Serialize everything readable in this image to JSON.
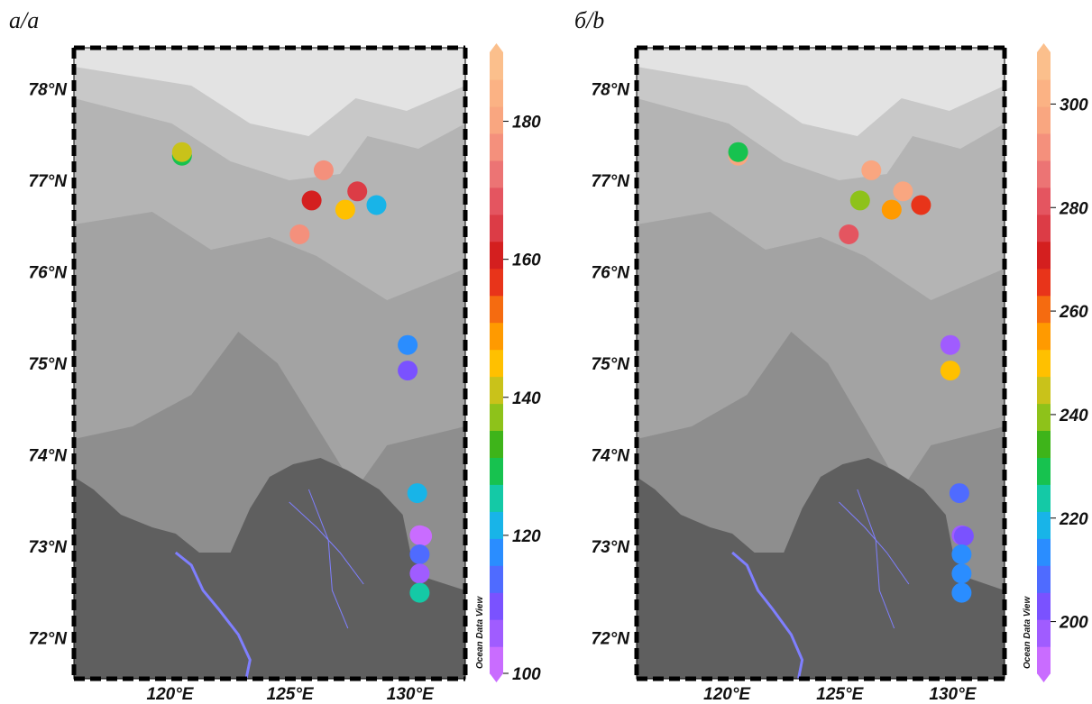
{
  "panels": [
    {
      "label": "а/a",
      "colorbar": {
        "min": 100,
        "max": 190,
        "ticks": [
          100,
          120,
          140,
          160,
          180
        ]
      },
      "stations": [
        {
          "lon": 120.5,
          "lat": 77.27,
          "value": 130
        },
        {
          "lon": 120.5,
          "lat": 77.31,
          "value": 142
        },
        {
          "lon": 126.4,
          "lat": 77.11,
          "value": 178
        },
        {
          "lon": 125.9,
          "lat": 76.78,
          "value": 160
        },
        {
          "lon": 127.8,
          "lat": 76.88,
          "value": 166
        },
        {
          "lon": 127.3,
          "lat": 76.68,
          "value": 143
        },
        {
          "lon": 128.6,
          "lat": 76.73,
          "value": 122
        },
        {
          "lon": 125.4,
          "lat": 76.41,
          "value": 176
        },
        {
          "lon": 129.9,
          "lat": 75.2,
          "value": 118
        },
        {
          "lon": 129.9,
          "lat": 74.92,
          "value": 108
        },
        {
          "lon": 130.3,
          "lat": 73.58,
          "value": 119
        },
        {
          "lon": 130.4,
          "lat": 73.12,
          "value": 101
        },
        {
          "lon": 130.5,
          "lat": 73.11,
          "value": 102
        },
        {
          "lon": 130.4,
          "lat": 72.91,
          "value": 114
        },
        {
          "lon": 130.4,
          "lat": 72.7,
          "value": 106
        },
        {
          "lon": 130.4,
          "lat": 72.49,
          "value": 126
        }
      ]
    },
    {
      "label": "б/b",
      "colorbar": {
        "min": 190,
        "max": 310,
        "ticks": [
          200,
          220,
          240,
          260,
          280,
          300
        ]
      },
      "stations": [
        {
          "lon": 120.5,
          "lat": 77.27,
          "value": 298
        },
        {
          "lon": 120.5,
          "lat": 77.31,
          "value": 228
        },
        {
          "lon": 126.4,
          "lat": 77.11,
          "value": 300
        },
        {
          "lon": 125.9,
          "lat": 76.78,
          "value": 240
        },
        {
          "lon": 127.8,
          "lat": 76.88,
          "value": 300
        },
        {
          "lon": 127.3,
          "lat": 76.68,
          "value": 256
        },
        {
          "lon": 128.6,
          "lat": 76.73,
          "value": 265
        },
        {
          "lon": 125.4,
          "lat": 76.41,
          "value": 282
        },
        {
          "lon": 129.9,
          "lat": 75.2,
          "value": 194
        },
        {
          "lon": 129.9,
          "lat": 74.92,
          "value": 248
        },
        {
          "lon": 130.3,
          "lat": 73.58,
          "value": 204
        },
        {
          "lon": 130.4,
          "lat": 73.12,
          "value": 198
        },
        {
          "lon": 130.5,
          "lat": 73.11,
          "value": 199
        },
        {
          "lon": 130.4,
          "lat": 72.91,
          "value": 213
        },
        {
          "lon": 130.4,
          "lat": 72.7,
          "value": 213
        },
        {
          "lon": 130.4,
          "lat": 72.49,
          "value": 214
        }
      ]
    }
  ],
  "lat_ticks": [
    72,
    73,
    74,
    75,
    76,
    77,
    78
  ],
  "lon_ticks": [
    120,
    125,
    130
  ],
  "lat_suffix": "°N",
  "lon_suffix": "°E",
  "watermark": "Ocean Data View",
  "map_extent": {
    "lon_min": 116,
    "lon_max": 132.3,
    "lat_min": 71.55,
    "lat_max": 78.45
  },
  "colors": {
    "land": "#5f5f5f",
    "river": "#7f7fff",
    "ice_light": "#e3e3e3",
    "shelf_shallow": "#b4b4b4",
    "sea_mid": "#a3a3a3",
    "sea_deep": "#8e8e8e"
  },
  "palette": [
    "#c96cff",
    "#a05cff",
    "#7a52ff",
    "#4f6bff",
    "#2a8dff",
    "#18b4e8",
    "#14c9a6",
    "#17c24f",
    "#3eb41a",
    "#8ec21a",
    "#c9c21a",
    "#ffc000",
    "#ff9a00",
    "#f56b10",
    "#e8341a",
    "#d41f1f",
    "#dc3c46",
    "#e45560",
    "#ec7474",
    "#f4907c",
    "#f9a680",
    "#fbb284",
    "#fbbf8c"
  ]
}
